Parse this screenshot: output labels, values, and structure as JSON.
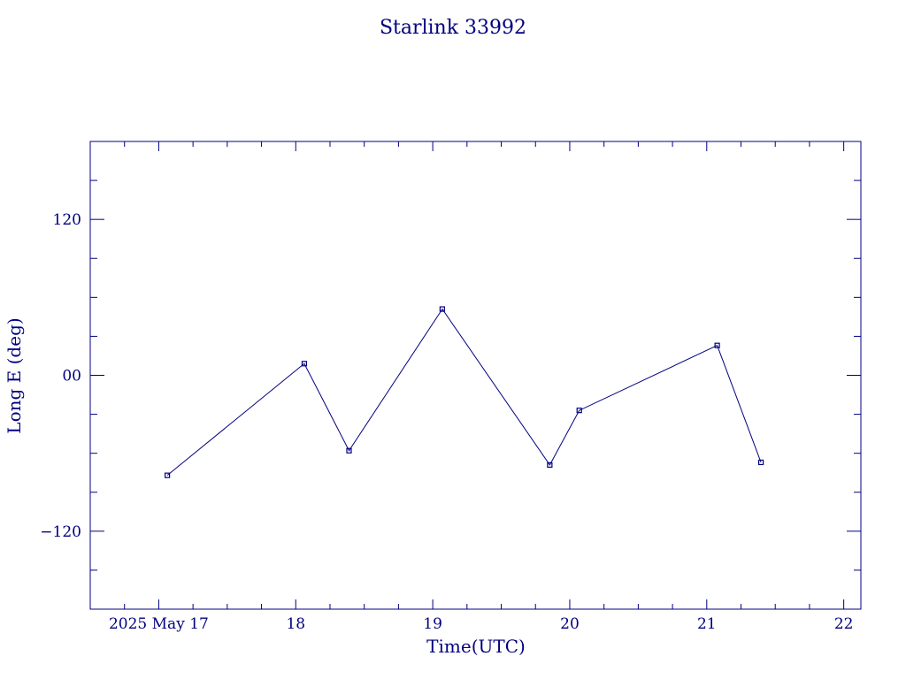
{
  "chart_data": {
    "type": "line",
    "title": "Starlink 33992",
    "xlabel": "Time(UTC)",
    "ylabel": "Long E (deg)",
    "x_is_date": true,
    "xlim": [
      "2025-05-16T12:00",
      "2025-05-22T03:00"
    ],
    "ylim": [
      -180,
      180
    ],
    "x_ticks": [
      {
        "x": "2025-05-17T00:00",
        "label": "2025 May 17"
      },
      {
        "x": "2025-05-18T00:00",
        "label": "18"
      },
      {
        "x": "2025-05-19T00:00",
        "label": "19"
      },
      {
        "x": "2025-05-20T00:00",
        "label": "20"
      },
      {
        "x": "2025-05-21T00:00",
        "label": "21"
      },
      {
        "x": "2025-05-22T00:00",
        "label": "22"
      }
    ],
    "y_ticks": [
      {
        "y": 120,
        "label": "120"
      },
      {
        "y": 0,
        "label": "00"
      },
      {
        "y": -120,
        "label": "−120"
      }
    ],
    "grid": false,
    "color": "#000080",
    "series": [
      {
        "points": [
          {
            "x": "2025-05-17T01:30",
            "y": -77
          },
          {
            "x": "2025-05-18T01:30",
            "y": 9
          },
          {
            "x": "2025-05-18T09:20",
            "y": -58
          },
          {
            "x": "2025-05-19T01:40",
            "y": 51
          },
          {
            "x": "2025-05-19T20:30",
            "y": -69
          },
          {
            "x": "2025-05-20T01:40",
            "y": -27
          },
          {
            "x": "2025-05-21T01:50",
            "y": 23
          },
          {
            "x": "2025-05-21T09:30",
            "y": -67
          }
        ]
      }
    ]
  }
}
